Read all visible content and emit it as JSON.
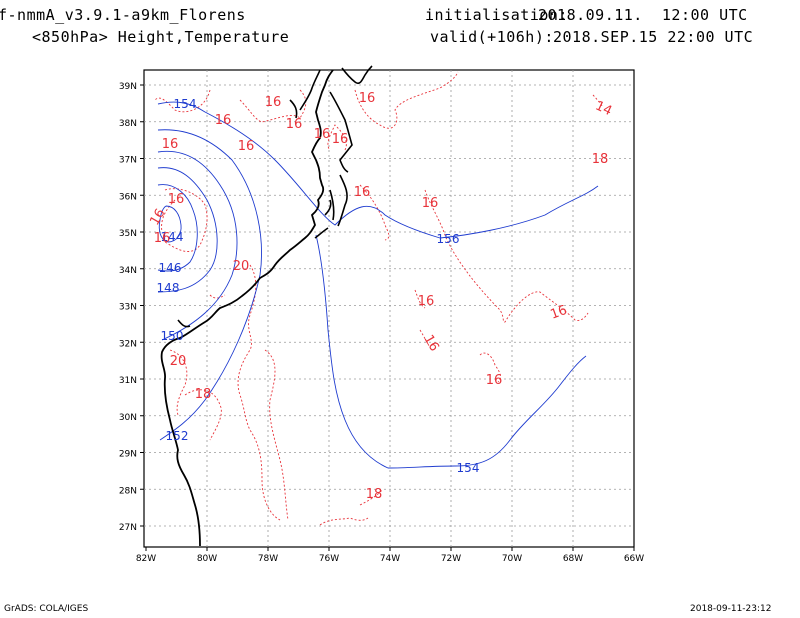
{
  "header": {
    "model": "f-nmmA_v3.9.1-a9km_Florens",
    "level": "<850hPa> Height,Temperature",
    "init_label": "initialisation:",
    "init_value": "2018.09.11.  12:00 UTC",
    "valid_label": "valid(+106h):",
    "valid_value": "2018.SEP.15 22:00 UTC"
  },
  "footer": {
    "credit": "GrADS: COLA/IGES",
    "timestamp": "2018-09-11-23:12"
  },
  "map": {
    "lat_labels": [
      "39N",
      "38N",
      "37N",
      "36N",
      "35N",
      "34N",
      "33N",
      "32N",
      "31N",
      "30N",
      "29N",
      "28N",
      "27N"
    ],
    "lon_labels": [
      "82W",
      "80W",
      "78W",
      "76W",
      "74W",
      "72W",
      "70W",
      "68W",
      "66W"
    ],
    "colors": {
      "height": "#1f3ccf",
      "temperature": "#e8333a",
      "coast": "#000000",
      "grid": "#9a9a9a"
    },
    "height_labels": [
      "154",
      "156",
      "154",
      "152",
      "150",
      "148",
      "146",
      "144"
    ],
    "temperature_labels": [
      "16",
      "16",
      "16",
      "16",
      "16",
      "16",
      "16",
      "16",
      "16",
      "16",
      "16",
      "16",
      "16",
      "16",
      "16",
      "16",
      "16",
      "14",
      "18",
      "20",
      "20",
      "18",
      "18"
    ]
  }
}
